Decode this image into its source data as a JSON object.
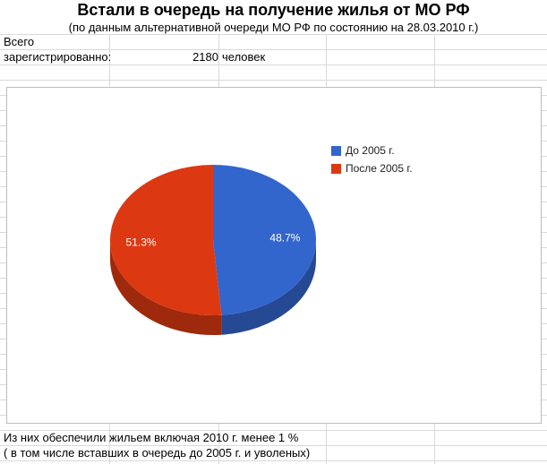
{
  "sheet": {
    "title": "Встали в очередь на получение жилья от МО РФ",
    "subtitle": "(по данным альтернативной очереди МО РФ по состоянию на 28.03.2010 г.)",
    "registered_label_line1": "Всего",
    "registered_label_line2": "зарегистрированно:",
    "registered_value": "2180",
    "registered_unit": "человек",
    "footer_line1": "Из них обеспечили жильем включая 2010 г. менее 1 %",
    "footer_line2": "( в том числе вставших в очередь до 2005 г. и уволеных)"
  },
  "chart_data": {
    "type": "pie",
    "title": "",
    "categories": [
      "До 2005 г.",
      "После 2005 г."
    ],
    "values": [
      48.7,
      51.3
    ],
    "value_labels": [
      "48.7%",
      "51.3%"
    ],
    "colors": [
      "#3366cc",
      "#dc3912"
    ],
    "legend_position": "right"
  }
}
